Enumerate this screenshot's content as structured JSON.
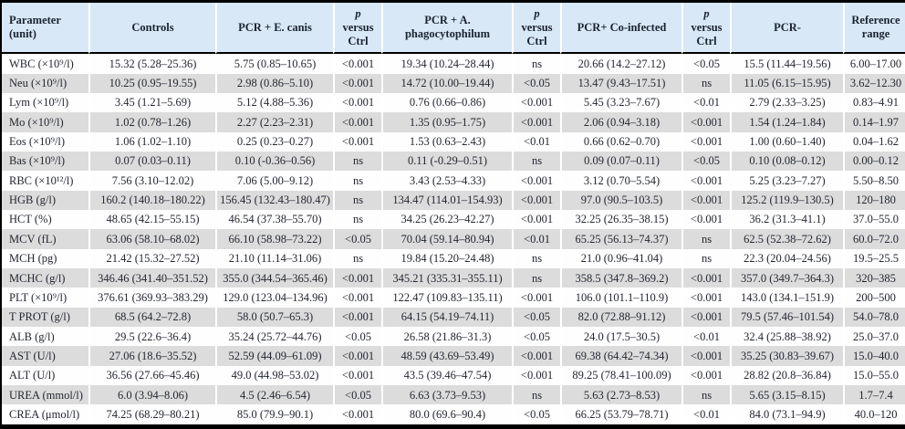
{
  "colors": {
    "header_bg": "#d9e8f6",
    "stripe": "#dcdcdc",
    "row_bg": "#fefefe",
    "border": "#000000",
    "text": "#232733",
    "header_text": "#1b2330"
  },
  "table": {
    "header": [
      {
        "id": "parameter",
        "label": "Parameter\n(unit)"
      },
      {
        "id": "controls",
        "label": "Controls"
      },
      {
        "id": "pcr-e-canis",
        "label": "PCR + E. canis"
      },
      {
        "id": "p-vs-ctrl-1",
        "label": "p\nversus\nCtrl",
        "italic_first_line": true
      },
      {
        "id": "pcr-a-phagocytophilum",
        "label": "PCR + A.\nphagocytophilum"
      },
      {
        "id": "p-vs-ctrl-2",
        "label": "p\nversus\nCtrl",
        "italic_first_line": true
      },
      {
        "id": "pcr-co-infected",
        "label": "PCR+ Co-infected"
      },
      {
        "id": "p-vs-ctrl-3",
        "label": "p\nversus\nCtrl",
        "italic_first_line": true
      },
      {
        "id": "pcr-negative",
        "label": "PCR-"
      },
      {
        "id": "reference-range",
        "label": "Reference\nrange"
      }
    ],
    "rows": [
      {
        "cells": [
          "WBC (×10⁹/l)",
          "15.32 (5.28–25.36)",
          "5.75 (0.85–10.65)",
          "<0.001",
          "19.34 (10.24–28.44)",
          "ns",
          "20.66 (14.2–27.12)",
          "<0.05",
          "15.5 (11.44–19.56)",
          "6.00–17.00"
        ]
      },
      {
        "cells": [
          "Neu (×10⁹/l)",
          "10.25 (0.95–19.55)",
          "2.98 (0.86–5.10)",
          "<0.001",
          "14.72 (10.00–19.44)",
          "<0.05",
          "13.47 (9.43–17.51)",
          "ns",
          "11.05 (6.15–15.95)",
          "3.62–12.30"
        ]
      },
      {
        "cells": [
          "Lym (×10⁹/l)",
          "3.45 (1.21–5.69)",
          "5.12 (4.88–5.36)",
          "<0.001",
          "0.76 (0.66–0.86)",
          "<0.001",
          "5.45 (3.23–7.67)",
          "<0.01",
          "2.79 (2.33–3.25)",
          "0.83–4.91"
        ]
      },
      {
        "cells": [
          "Mo (×10⁹/l)",
          "1.02 (0.78–1.26)",
          "2.27 (2.23–2.31)",
          "<0.001",
          "1.35 (0.95–1.75)",
          "<0.001",
          "2.06 (0.94–3.18)",
          "<0.001",
          "1.54 (1.24–1.84)",
          "0.14–1.97"
        ]
      },
      {
        "cells": [
          "Eos (×10⁹/l)",
          "1.06 (1.02–1.10)",
          "0.25 (0.23–0.27)",
          "<0.001",
          "1.53 (0.63–2.43)",
          "<0.01",
          "0.66 (0.62–0.70)",
          "<0.001",
          "1.00 (0.60–1.40)",
          "0.04–1.62"
        ]
      },
      {
        "cells": [
          "Bas (×10⁹/l)",
          "0.07 (0.03–0.11)",
          "0.10 (-0.36–0.56)",
          "ns",
          "0.11 (-0.29–0.51)",
          "ns",
          "0.09 (0.07–0.11)",
          "<0.05",
          "0.10 (0.08–0.12)",
          "0.00–0.12"
        ]
      },
      {
        "cells": [
          "RBC (×10¹²/l)",
          "7.56 (3.10–12.02)",
          "7.06 (5.00–9.12)",
          "ns",
          "3.43 (2.53–4.33)",
          "<0.001",
          "3.12 (0.70–5.54)",
          "<0.001",
          "5.25 (3.23–7.27)",
          "5.50–8.50"
        ]
      },
      {
        "cells": [
          "HGB (g/l)",
          "160.2 (140.18–180.22)",
          "156.45 (132.43–180.47)",
          "ns",
          "134.47 (114.01–154.93)",
          "<0.001",
          "97.0 (90.5–103.5)",
          "<0.001",
          "125.2 (119.9–130.5)",
          "120–180"
        ]
      },
      {
        "cells": [
          "HCT (%)",
          "48.65 (42.15–55.15)",
          "46.54 (37.38–55.70)",
          "ns",
          "34.25 (26.23–42.27)",
          "<0.001",
          "32.25 (26.35–38.15)",
          "<0.001",
          "36.2 (31.3–41.1)",
          "37.0–55.0"
        ]
      },
      {
        "cells": [
          "MCV (fL)",
          "63.06 (58.10–68.02)",
          "66.10 (58.98–73.22)",
          "<0.05",
          "70.04 (59.14–80.94)",
          "<0.01",
          "65.25 (56.13–74.37)",
          "ns",
          "62.5 (52.38–72.62)",
          "60.0–72.0"
        ]
      },
      {
        "cells": [
          "MCH (pg)",
          "21.42 (15.32–27.52)",
          "21.10 (11.14–31.06)",
          "ns",
          "19.84 (15.20–24.48)",
          "ns",
          "21.0 (0.96–41.04)",
          "ns",
          "22.3 (20.04–24.56)",
          "19.5–25.5"
        ]
      },
      {
        "cells": [
          "MCHC (g/l)",
          "346.46 (341.40–351.52)",
          "355.0 (344.54–365.46)",
          "<0.001",
          "345.21 (335.31–355.11)",
          "ns",
          "358.5 (347.8–369.2)",
          "<0.001",
          "357.0 (349.7–364.3)",
          "320–385"
        ]
      },
      {
        "cells": [
          "PLT (×10⁹/l)",
          "376.61 (369.93–383.29)",
          "129.0 (123.04–134.96)",
          "<0.001",
          "122.47 (109.83–135.11)",
          "<0.001",
          "106.0 (101.1–110.9)",
          "<0.001",
          "143.0 (134.1–151.9)",
          "200–500"
        ]
      },
      {
        "cells": [
          "T PROT (g/l)",
          "68.5 (64.2–72.8)",
          "58.0 (50.7–65.3)",
          "<0.001",
          "64.15 (54.19–74.11)",
          "<0.05",
          "82.0 (72.88–91.12)",
          "<0.001",
          "79.5 (57.46–101.54)",
          "54.0–78.0"
        ]
      },
      {
        "cells": [
          "ALB (g/l)",
          "29.5 (22.6–36.4)",
          "35.24 (25.72–44.76)",
          "<0.05",
          "26.58 (21.86–31.3)",
          "<0.05",
          "24.0 (17.5–30.5)",
          "<0.01",
          "32.4 (25.88–38.92)",
          "25.0–37.0"
        ]
      },
      {
        "cells": [
          "AST (U/l)",
          "27.06 (18.6–35.52)",
          "52.59 (44.09–61.09)",
          "<0.001",
          "48.59 (43.69–53.49)",
          "<0.001",
          "69.38 (64.42–74.34)",
          "<0.001",
          "35.25 (30.83–39.67)",
          "15.0–40.0"
        ]
      },
      {
        "cells": [
          "ALT (U/l)",
          "36.56 (27.66–45.46)",
          "49.0 (44.98–53.02)",
          "<0.001",
          "43.5 (39.46–47.54)",
          "<0.001",
          "89.25 (78.41–100.09)",
          "<0.001",
          "28.82 (20.8–36.84)",
          "15.0–55.0"
        ]
      },
      {
        "cells": [
          "UREA (mmol/l)",
          "6.0 (3.94–8.06)",
          "4.5 (2.46–6.54)",
          "<0.05",
          "6.63 (3.73–9.53)",
          "ns",
          "5.63 (2.73–8.53)",
          "ns",
          "5.65 (3.15–8.15)",
          "1.7–7.4"
        ]
      },
      {
        "cells": [
          "CREA (μmol/l)",
          "74.25 (68.29–80.21)",
          "85.0 (79.9–90.1)",
          "<0.001",
          "80.0 (69.6–90.4)",
          "<0.05",
          "66.25 (53.79–78.71)",
          "<0.01",
          "84.0 (73.1–94.9)",
          "40.0–120"
        ]
      }
    ]
  }
}
